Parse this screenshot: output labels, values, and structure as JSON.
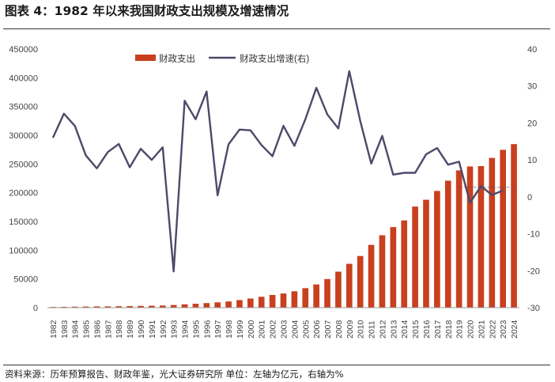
{
  "title": "图表 4：1982 年以来我国财政支出规模及增速情况",
  "source": "资料来源：历年预算报告、财政年鉴，光大证券研究所  单位：左轴为亿元，右轴为%",
  "colors": {
    "bar": "#c8401e",
    "line": "#4a4a6a",
    "axis": "#666666",
    "text": "#444444"
  },
  "chart_data": {
    "type": "bar+line",
    "categories": [
      "1982",
      "1983",
      "1984",
      "1985",
      "1986",
      "1987",
      "1988",
      "1989",
      "1990",
      "1991",
      "1992",
      "1993",
      "1994",
      "1995",
      "1996",
      "1997",
      "1998",
      "1999",
      "2000",
      "2001",
      "2002",
      "2003",
      "2004",
      "2005",
      "2006",
      "2007",
      "2008",
      "2009",
      "2010",
      "2011",
      "2012",
      "2013",
      "2014",
      "2015",
      "2016",
      "2017",
      "2018",
      "2019",
      "2020",
      "2021",
      "2022",
      "2023",
      "2024"
    ],
    "series": [
      {
        "name": "财政支出",
        "axis": "left",
        "kind": "bar",
        "values": [
          1230,
          1410,
          1701,
          2004,
          2205,
          2262,
          2491,
          2824,
          3084,
          3387,
          3742,
          4642,
          5793,
          6824,
          7938,
          9234,
          10798,
          13188,
          15887,
          18903,
          22053,
          24650,
          28487,
          33930,
          40423,
          49781,
          62593,
          76300,
          89874,
          109248,
          125953,
          140212,
          151786,
          175878,
          187755,
          203085,
          220904,
          238874,
          245679,
          246322,
          260552,
          274574,
          284612
        ]
      },
      {
        "name": "财政支出增速(右)",
        "axis": "right",
        "kind": "line",
        "values": [
          16.0,
          22.5,
          19.2,
          11.2,
          7.7,
          12.1,
          14.3,
          8.0,
          13.0,
          10.0,
          13.4,
          -20.2,
          26.0,
          21.0,
          28.5,
          0.4,
          14.2,
          18.2,
          18.0,
          14.0,
          11.0,
          19.2,
          13.8,
          21.0,
          29.5,
          22.3,
          18.5,
          34.0,
          20.5,
          9.0,
          16.5,
          6.0,
          6.5,
          6.5,
          11.5,
          13.2,
          8.7,
          9.5,
          -1.6,
          2.9,
          0.5,
          1.7,
          null
        ],
        "note": "line segment 2020-2024 includes a trend label annotation"
      }
    ],
    "left_axis": {
      "min": 0,
      "max": 450000,
      "ticks": [
        0,
        50000,
        100000,
        150000,
        200000,
        250000,
        300000,
        350000,
        400000,
        450000
      ]
    },
    "right_axis": {
      "min": -30,
      "max": 40,
      "ticks": [
        -30,
        -20,
        -10,
        0,
        10,
        20,
        30,
        40
      ]
    },
    "legend": [
      "财政支出",
      "财政支出增速(右)"
    ],
    "legend_position": "top-center"
  }
}
